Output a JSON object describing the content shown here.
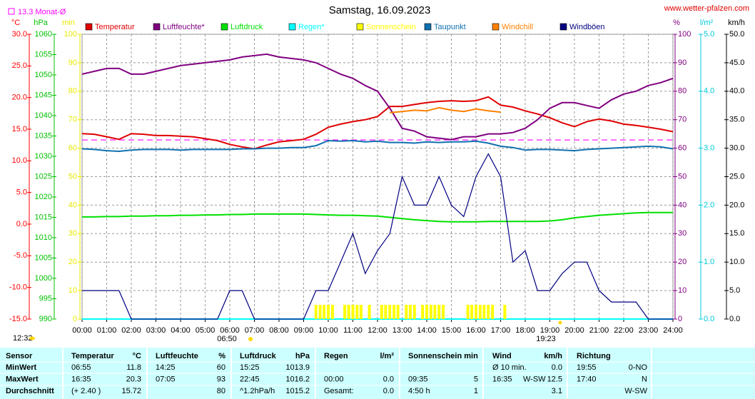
{
  "chart_data": {
    "type": "line",
    "title": "Samstag, 16.09.2023",
    "source": "www.wetter-pfalzen.com",
    "monthly_mean": {
      "value": 13.3,
      "label": "13.3 Monat-Ø",
      "color": "#ff00ff"
    },
    "annotations": {
      "sunrise": "06:50",
      "sunset": "19:23",
      "corner": "12:32"
    },
    "xlim": [
      0,
      24
    ],
    "xticks": [
      {
        "value": 0,
        "label": "00:00"
      },
      {
        "value": 1,
        "label": "01:00"
      },
      {
        "value": 2,
        "label": "02:00"
      },
      {
        "value": 3,
        "label": "03:00"
      },
      {
        "value": 4,
        "label": "04:00"
      },
      {
        "value": 5,
        "label": "05:00"
      },
      {
        "value": 6,
        "label": "06:00"
      },
      {
        "value": 7,
        "label": "07:00"
      },
      {
        "value": 8,
        "label": "08:00"
      },
      {
        "value": 9,
        "label": "09:00"
      },
      {
        "value": 10,
        "label": "10:00"
      },
      {
        "value": 11,
        "label": "11:00"
      },
      {
        "value": 12,
        "label": "12:00"
      },
      {
        "value": 13,
        "label": "13:00"
      },
      {
        "value": 14,
        "label": "14:00"
      },
      {
        "value": 15,
        "label": "15:00"
      },
      {
        "value": 16,
        "label": "16:00"
      },
      {
        "value": 17,
        "label": "17:00"
      },
      {
        "value": 18,
        "label": "18:00"
      },
      {
        "value": 19,
        "label": "19:00"
      },
      {
        "value": 20,
        "label": "20:00"
      },
      {
        "value": 21,
        "label": "21:00"
      },
      {
        "value": 22,
        "label": "22:00"
      },
      {
        "value": 23,
        "label": "23:00"
      },
      {
        "value": 24,
        "label": "24:00"
      }
    ],
    "grid": true,
    "axes": [
      {
        "unit": "°C",
        "color": "#ff0000",
        "lim": [
          -15,
          30
        ],
        "ticks": [
          {
            "value": -15,
            "label": "-15.0"
          },
          {
            "value": -10,
            "label": "-10.0"
          },
          {
            "value": -5,
            "label": "-5.0"
          },
          {
            "value": 0,
            "label": "0.0"
          },
          {
            "value": 5,
            "label": "5.0"
          },
          {
            "value": 10,
            "label": "10.0"
          },
          {
            "value": 15,
            "label": "15.0"
          },
          {
            "value": 20,
            "label": "20.0"
          },
          {
            "value": 25,
            "label": "25.0"
          },
          {
            "value": 30,
            "label": "30.0"
          }
        ]
      },
      {
        "unit": "hPa",
        "color": "#00c000",
        "lim": [
          990,
          1060
        ],
        "ticks": [
          990,
          995,
          1000,
          1005,
          1010,
          1015,
          1020,
          1025,
          1030,
          1035,
          1040,
          1045,
          1050,
          1055,
          1060
        ]
      },
      {
        "unit": "min",
        "color": "#e8e800",
        "lim": [
          0,
          100
        ],
        "ticks": [
          0,
          10,
          20,
          30,
          40,
          50,
          60,
          70,
          80,
          90,
          100
        ]
      },
      {
        "unit": "%",
        "color": "#800080",
        "lim": [
          0,
          100
        ],
        "ticks": [
          0,
          10,
          20,
          30,
          40,
          50,
          60,
          70,
          80,
          90,
          100
        ]
      },
      {
        "unit": "l/m²",
        "color": "#00c8d8",
        "lim": [
          0,
          5
        ],
        "ticks": [
          {
            "value": 0,
            "label": "0.0"
          },
          {
            "value": 1,
            "label": "1.0"
          },
          {
            "value": 2,
            "label": "2.0"
          },
          {
            "value": 3,
            "label": "3.0"
          },
          {
            "value": 4,
            "label": "4.0"
          },
          {
            "value": 5,
            "label": "5.0"
          }
        ]
      },
      {
        "unit": "km/h",
        "color": "#000000",
        "lim": [
          0,
          50
        ],
        "ticks": [
          {
            "value": 0,
            "label": "0.0"
          },
          {
            "value": 5,
            "label": "5.0"
          },
          {
            "value": 10,
            "label": "10.0"
          },
          {
            "value": 15,
            "label": "15.0"
          },
          {
            "value": 20,
            "label": "20.0"
          },
          {
            "value": 25,
            "label": "25.0"
          },
          {
            "value": 30,
            "label": "30.0"
          },
          {
            "value": 35,
            "label": "35.0"
          },
          {
            "value": 40,
            "label": "40.0"
          },
          {
            "value": 45,
            "label": "45.0"
          },
          {
            "value": 50,
            "label": "50.0"
          }
        ]
      }
    ],
    "x": [
      0,
      0.5,
      1,
      1.5,
      2,
      2.5,
      3,
      3.5,
      4,
      4.5,
      5,
      5.5,
      6,
      6.5,
      7,
      7.5,
      8,
      8.5,
      9,
      9.5,
      10,
      10.5,
      11,
      11.5,
      12,
      12.5,
      13,
      13.5,
      14,
      14.5,
      15,
      15.5,
      16,
      16.5,
      17,
      17.5,
      18,
      18.5,
      19,
      19.5,
      20,
      20.5,
      21,
      21.5,
      22,
      22.5,
      23,
      23.5,
      24
    ],
    "series": [
      {
        "name": "Temperatur",
        "color": "#e00000",
        "axis": 0,
        "values": [
          14.3,
          14.2,
          13.8,
          13.4,
          14.3,
          14.2,
          14.0,
          14.0,
          13.9,
          13.8,
          13.5,
          13.2,
          12.6,
          12.2,
          11.9,
          12.5,
          13.0,
          13.2,
          13.4,
          14.2,
          15.3,
          15.8,
          16.2,
          16.5,
          17.0,
          18.6,
          18.6,
          18.9,
          19.2,
          19.4,
          19.5,
          19.4,
          19.5,
          20.1,
          18.8,
          18.5,
          17.9,
          17.4,
          16.8,
          16.0,
          15.4,
          16.2,
          16.6,
          16.3,
          15.8,
          15.6,
          15.3,
          15.0,
          14.6
        ]
      },
      {
        "name": "Luftfeuchte*",
        "color": "#800080",
        "axis": 3,
        "values": [
          86,
          87,
          88,
          88,
          86,
          86,
          87,
          88,
          89,
          89.5,
          90,
          90.5,
          91,
          92,
          92.5,
          93,
          92,
          91.5,
          91,
          90,
          88,
          86,
          84.5,
          82,
          80,
          74,
          67,
          66,
          64,
          63.5,
          63,
          64,
          64,
          65,
          65,
          65.5,
          67,
          70,
          74,
          76,
          76,
          75,
          74,
          77,
          79,
          80,
          82,
          83,
          84.5
        ]
      },
      {
        "name": "Luftdruck",
        "color": "#00e000",
        "axis": 1,
        "values": [
          1015.1,
          1015.1,
          1015.2,
          1015.2,
          1015.3,
          1015.3,
          1015.4,
          1015.4,
          1015.5,
          1015.5,
          1015.6,
          1015.6,
          1015.7,
          1015.7,
          1015.8,
          1015.8,
          1015.8,
          1015.8,
          1015.8,
          1015.7,
          1015.6,
          1015.5,
          1015.5,
          1015.4,
          1015.3,
          1015.0,
          1014.7,
          1014.4,
          1014.2,
          1014.0,
          1013.9,
          1013.9,
          1013.9,
          1014.0,
          1014.0,
          1014.0,
          1014.0,
          1014.0,
          1014.1,
          1014.4,
          1014.9,
          1015.2,
          1015.5,
          1015.7,
          1015.9,
          1016.1,
          1016.2,
          1016.2,
          1016.2
        ]
      },
      {
        "name": "Regen*",
        "color": "#00ffff",
        "axis": 4,
        "values": [
          0,
          0,
          0,
          0,
          0,
          0,
          0,
          0,
          0,
          0,
          0,
          0,
          0,
          0,
          0,
          0,
          0,
          0,
          0,
          0,
          0,
          0,
          0,
          0,
          0,
          0,
          0,
          0,
          0,
          0,
          0,
          0,
          0,
          0,
          0,
          0,
          0,
          0,
          0,
          0,
          0,
          0,
          0,
          0,
          0,
          0,
          0,
          0,
          0
        ]
      },
      {
        "name": "Sonnenschein",
        "color": "#ffff00",
        "axis": 2,
        "kind": "bars",
        "x": [
          9.5,
          9.67,
          9.83,
          10.0,
          10.17,
          10.67,
          10.83,
          11.0,
          11.17,
          11.33,
          11.67,
          12.17,
          12.33,
          12.5,
          12.67,
          12.83,
          13.17,
          13.33,
          13.5,
          13.83,
          14.0,
          14.17,
          14.33,
          14.5,
          14.67,
          15.67,
          15.83,
          16.0,
          16.17,
          16.33,
          16.5,
          16.67,
          17.17
        ],
        "values": [
          5,
          5,
          5,
          5,
          5,
          5,
          5,
          5,
          5,
          5,
          5,
          5,
          5,
          5,
          5,
          5,
          5,
          5,
          5,
          5,
          5,
          5,
          5,
          5,
          5,
          5,
          5,
          5,
          5,
          5,
          5,
          5,
          5
        ]
      },
      {
        "name": "Taupunkt",
        "color": "#1070b0",
        "axis": 0,
        "values": [
          11.9,
          11.8,
          11.6,
          11.5,
          11.7,
          11.8,
          11.8,
          11.8,
          11.7,
          11.8,
          11.8,
          11.8,
          11.8,
          11.9,
          11.9,
          12.0,
          12.0,
          12.1,
          12.1,
          12.4,
          13.2,
          13.1,
          13.2,
          13.0,
          13.1,
          12.9,
          12.9,
          12.8,
          13.0,
          12.9,
          13.0,
          13.0,
          13.1,
          12.8,
          12.3,
          12.1,
          11.7,
          11.8,
          11.8,
          11.7,
          11.6,
          11.8,
          11.9,
          12.0,
          12.1,
          12.2,
          12.3,
          12.2,
          11.9
        ]
      },
      {
        "name": "Windchill",
        "color": "#ff8000",
        "axis": 0,
        "values": [
          null,
          null,
          null,
          null,
          null,
          null,
          null,
          null,
          null,
          null,
          null,
          null,
          null,
          null,
          null,
          null,
          null,
          null,
          null,
          null,
          null,
          null,
          null,
          null,
          null,
          17.6,
          17.8,
          18.0,
          17.9,
          18.4,
          18.0,
          17.8,
          18.2,
          17.9,
          17.7,
          null,
          null,
          null,
          null,
          null,
          null,
          null,
          null,
          null,
          null,
          null,
          null,
          null,
          null
        ]
      },
      {
        "name": "Windböen",
        "color": "#000080",
        "axis": 5,
        "values": [
          5,
          5,
          5,
          5,
          0,
          0,
          0,
          0,
          0,
          0,
          0,
          0,
          5,
          5,
          0,
          0,
          0,
          0,
          0,
          5,
          5,
          10,
          15,
          8,
          12,
          15,
          25,
          20,
          20,
          25,
          20,
          18,
          25,
          29,
          25,
          10,
          12,
          5,
          5,
          8,
          10,
          10,
          5,
          3,
          3,
          3,
          0,
          0,
          0
        ]
      }
    ]
  },
  "table": {
    "header": {
      "label": "Sensor",
      "t1": "Temperatur",
      "v1": "°C",
      "t2": "Luftfeuchte",
      "v2": "%",
      "t3": "Luftdruck",
      "v3": "hPa",
      "t4": "Regen",
      "v4": "l/m²",
      "t5": "Sonnenschein min",
      "t6": "Wind",
      "v6": "km/h",
      "t7": "Richtung"
    },
    "rows": [
      {
        "label": "MinWert",
        "t1": "06:55",
        "v1": "11.8",
        "t2": "14:25",
        "v2": "60",
        "t3": "15:25",
        "v3": "1013.9",
        "t6": "Ø 10 min.",
        "v6": "0.0",
        "t7": "19:55",
        "v7": "0-NO"
      },
      {
        "label": "MaxWert",
        "t1": "16:35",
        "v1": "20.3",
        "t2": "07:05",
        "v2": "93",
        "t3": "22:45",
        "v3": "1016.2",
        "t4": "00:00",
        "v4": "0.0",
        "t5": "09:35",
        "v5": "5",
        "t6": "16:35",
        "d6": "W-SW",
        "v6": "12.5",
        "t7": "17:40",
        "v7": "N"
      },
      {
        "label": "Durchschnitt",
        "t1": "(+ 2.40 )",
        "v1": "15.72",
        "v2": "80",
        "t3": "^1.2hPa/h",
        "v3": "1015.2",
        "t4": "Gesamt:",
        "v4": "0.0",
        "t5": "4:50 h",
        "v5": "1",
        "v6": "3.1",
        "v7": "W-SW"
      }
    ]
  }
}
